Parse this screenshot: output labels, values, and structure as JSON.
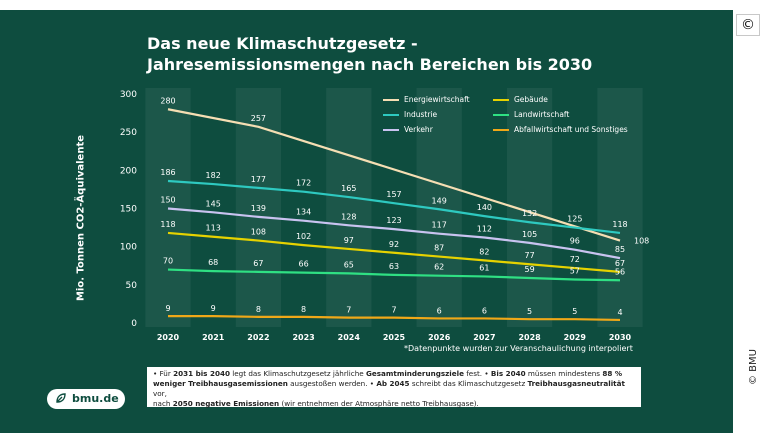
{
  "title_line1": "Das neue Klimaschutzgesetz -",
  "title_line2": "Jahresemissionsmengen nach Bereichen bis 2030",
  "copyright_symbol": "©",
  "credit": "© BMU",
  "logo_text": "bmu.de",
  "interp_note": "*Datenpunkte wurden zur Veranschaulichung interpoliert",
  "footnote": {
    "p1": "• Für ",
    "b1": "2031 bis 2040",
    "p2": " legt das Klimaschutzgesetz jährliche ",
    "b2": "Gesamtminderungsziele",
    "p3": " fest. • ",
    "b3": "Bis 2040",
    "p4": " müssen mindestens ",
    "b4": "88 %",
    "b5": "weniger Treibhausgasemissionen",
    "p5": " ausgestoßen werden. • ",
    "b6": "Ab 2045",
    "p6": " schreibt das Klimaschutzgesetz ",
    "b7": "Treibhausgasneutralität",
    "p7": " vor,",
    "p8": "nach ",
    "b8": "2050 negative Emissionen",
    "p9": " (wir entnehmen der Atmosphäre netto Treibhausgase)."
  },
  "chart_data": {
    "type": "line",
    "ylabel": "Mio. Tonnen CO2-Äquivalente",
    "ylim": [
      0,
      300
    ],
    "yticks": [
      0,
      50,
      100,
      150,
      200,
      250,
      300
    ],
    "x": [
      "2020",
      "2021",
      "2022",
      "2023",
      "2024",
      "2025",
      "2026",
      "2027",
      "2028",
      "2029",
      "2030"
    ],
    "series": [
      {
        "name": "Energiewirtschaft",
        "color": "#f5deb3",
        "values": [
          280,
          null,
          257,
          null,
          null,
          null,
          null,
          null,
          null,
          null,
          108
        ],
        "labels": [
          "280",
          null,
          "257",
          null,
          null,
          null,
          null,
          null,
          null,
          null,
          "108"
        ]
      },
      {
        "name": "Industrie",
        "color": "#2ec9c0",
        "values": [
          186,
          182,
          177,
          172,
          165,
          157,
          149,
          140,
          132,
          125,
          118
        ]
      },
      {
        "name": "Verkehr",
        "color": "#c9c3f0",
        "values": [
          150,
          145,
          139,
          134,
          128,
          123,
          117,
          112,
          105,
          96,
          85
        ]
      },
      {
        "name": "Gebäude",
        "color": "#e6d200",
        "values": [
          118,
          113,
          108,
          102,
          97,
          92,
          87,
          82,
          77,
          72,
          67
        ]
      },
      {
        "name": "Landwirtschaft",
        "color": "#2fe083",
        "values": [
          70,
          68,
          67,
          66,
          65,
          63,
          62,
          61,
          59,
          57,
          56
        ]
      },
      {
        "name": "Abfallwirtschaft und Sonstiges",
        "color": "#f0a818",
        "values": [
          9,
          9,
          8,
          8,
          7,
          7,
          6,
          6,
          5,
          5,
          4
        ]
      }
    ],
    "grid": "vertical alternating bands",
    "legend": "top-right"
  }
}
